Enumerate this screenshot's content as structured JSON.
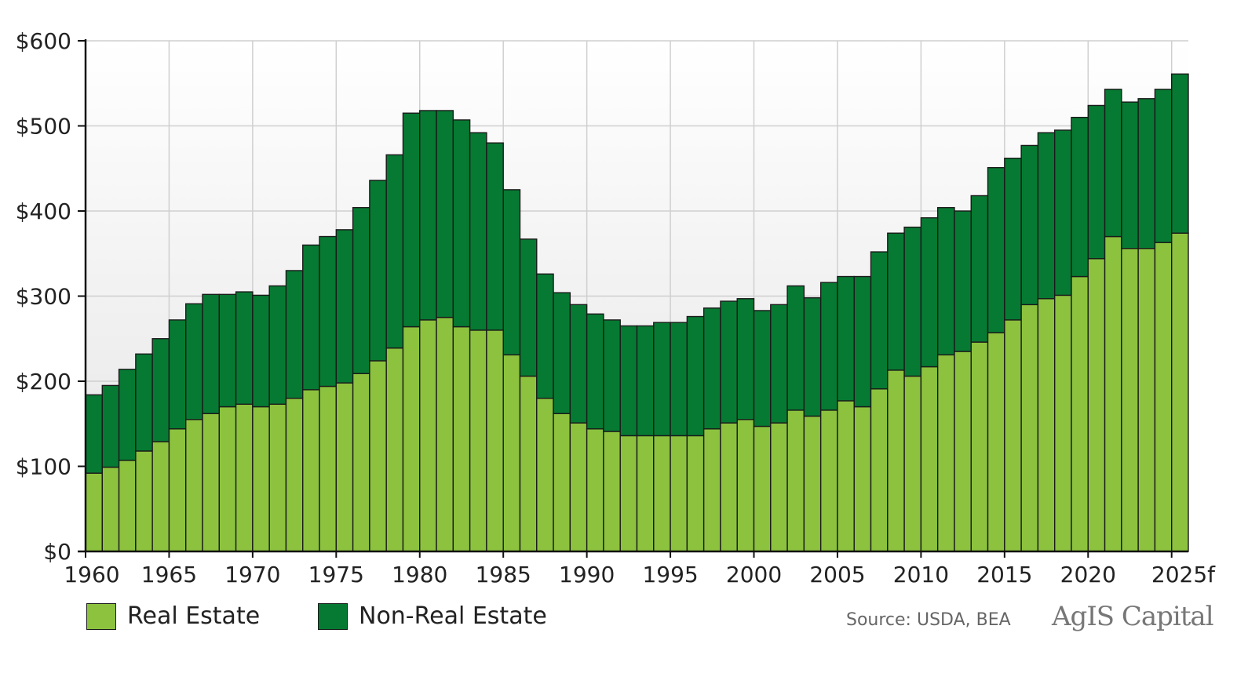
{
  "chart_data": {
    "type": "bar",
    "stacked": true,
    "title": "",
    "xlabel": "",
    "ylabel": "",
    "ylim": [
      0,
      600
    ],
    "y_ticks": [
      "$0",
      "$100",
      "$200",
      "$300",
      "$400",
      "$500",
      "$600"
    ],
    "y_tick_values": [
      0,
      100,
      200,
      300,
      400,
      500,
      600
    ],
    "x_ticks": [
      "1960",
      "1965",
      "1970",
      "1975",
      "1980",
      "1985",
      "1990",
      "1995",
      "2000",
      "2005",
      "2010",
      "2015",
      "2020",
      "2025f"
    ],
    "categories": [
      "1960",
      "1961",
      "1962",
      "1963",
      "1964",
      "1965",
      "1966",
      "1967",
      "1968",
      "1969",
      "1970",
      "1971",
      "1972",
      "1973",
      "1974",
      "1975",
      "1976",
      "1977",
      "1978",
      "1979",
      "1980",
      "1981",
      "1982",
      "1983",
      "1984",
      "1985",
      "1986",
      "1987",
      "1988",
      "1989",
      "1990",
      "1991",
      "1992",
      "1993",
      "1994",
      "1995",
      "1996",
      "1997",
      "1998",
      "1999",
      "2000",
      "2001",
      "2002",
      "2003",
      "2004",
      "2005",
      "2006",
      "2007",
      "2008",
      "2009",
      "2010",
      "2011",
      "2012",
      "2013",
      "2014",
      "2015",
      "2016",
      "2017",
      "2018",
      "2019",
      "2020",
      "2021",
      "2022",
      "2023",
      "2024",
      "2025f"
    ],
    "grid": true,
    "legend_position": "bottom-left",
    "series": [
      {
        "name": "Real Estate",
        "color": "#8cc23e",
        "values": [
          92,
          99,
          107,
          118,
          129,
          144,
          155,
          162,
          170,
          173,
          170,
          173,
          180,
          190,
          194,
          198,
          209,
          224,
          239,
          264,
          272,
          275,
          264,
          260,
          260,
          231,
          206,
          180,
          162,
          151,
          144,
          141,
          136,
          136,
          136,
          136,
          136,
          144,
          151,
          155,
          147,
          151,
          166,
          159,
          166,
          177,
          170,
          191,
          213,
          206,
          217,
          231,
          235,
          246,
          257,
          272,
          290,
          297,
          301,
          323,
          344,
          370,
          356,
          356,
          363,
          374
        ]
      },
      {
        "name": "Non-Real Estate",
        "color": "#067a32",
        "values": [
          92,
          96,
          107,
          114,
          121,
          128,
          136,
          140,
          132,
          132,
          131,
          139,
          150,
          170,
          176,
          180,
          195,
          212,
          227,
          251,
          246,
          243,
          243,
          232,
          220,
          194,
          161,
          146,
          142,
          139,
          135,
          131,
          129,
          129,
          133,
          133,
          140,
          142,
          143,
          142,
          136,
          139,
          146,
          139,
          150,
          146,
          153,
          161,
          161,
          175,
          175,
          173,
          165,
          172,
          194,
          190,
          187,
          195,
          194,
          187,
          180,
          173,
          172,
          176,
          180,
          187
        ]
      }
    ]
  },
  "legend": {
    "real_estate_label": "Real Estate",
    "non_real_estate_label": "Non-Real Estate",
    "real_estate_color": "#8cc23e",
    "non_real_estate_color": "#067a32"
  },
  "source": "Source: USDA, BEA",
  "logo_text": "AgIS Capital"
}
